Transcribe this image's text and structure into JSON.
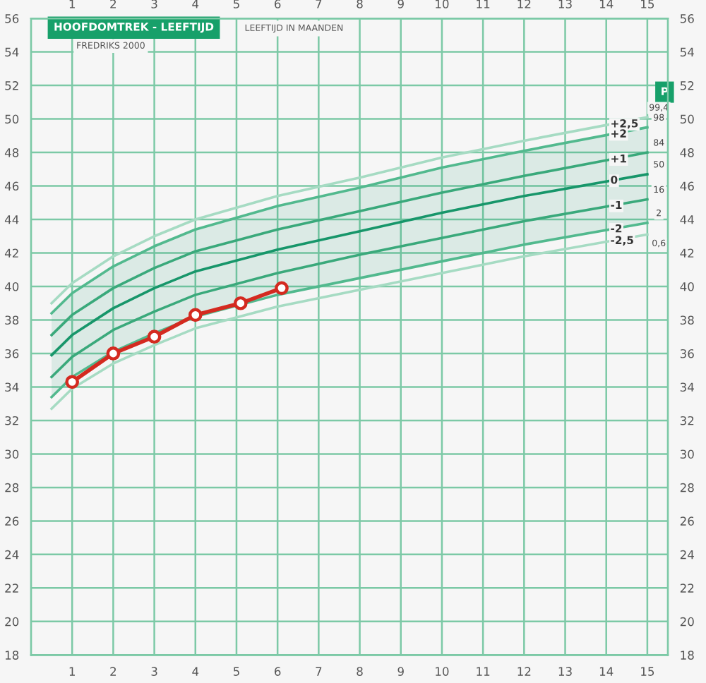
{
  "chart_data": {
    "type": "line",
    "title": "HOOFDOMTREK - LEEFTIJD",
    "subtitle": "FREDRIKS 2000",
    "xlabel": "LEEFTIJD IN MAANDEN",
    "x": [
      0.5,
      1,
      2,
      3,
      4,
      6,
      8,
      10,
      12,
      15
    ],
    "series": [
      {
        "name": "+2,5",
        "color": "#a6dbc3",
        "values": [
          39.0,
          40.2,
          41.8,
          43.0,
          44.0,
          45.4,
          46.5,
          47.7,
          48.7,
          50.1
        ]
      },
      {
        "name": "+2",
        "color": "#52b98e",
        "values": [
          38.4,
          39.6,
          41.2,
          42.4,
          43.4,
          44.8,
          45.9,
          47.1,
          48.1,
          49.5
        ]
      },
      {
        "name": "+1",
        "color": "#3aa97b",
        "values": [
          37.1,
          38.3,
          39.9,
          41.1,
          42.1,
          43.4,
          44.5,
          45.6,
          46.6,
          48.0
        ]
      },
      {
        "name": "0",
        "color": "#17966a",
        "values": [
          35.9,
          37.1,
          38.7,
          39.9,
          40.9,
          42.2,
          43.3,
          44.4,
          45.4,
          46.7
        ],
        "lower": [
          33.4,
          34.6,
          36.1,
          37.2,
          38.2,
          39.5,
          40.5,
          41.5,
          42.5,
          43.8
        ],
        "upper": [
          38.4,
          39.6,
          41.2,
          42.4,
          43.4,
          44.8,
          45.9,
          47.1,
          48.1,
          49.5
        ]
      },
      {
        "name": "-1",
        "color": "#3aa97b",
        "values": [
          34.6,
          35.8,
          37.4,
          38.5,
          39.5,
          40.8,
          41.9,
          42.9,
          43.9,
          45.2
        ]
      },
      {
        "name": "-2",
        "color": "#52b98e",
        "values": [
          33.4,
          34.6,
          36.1,
          37.2,
          38.2,
          39.5,
          40.5,
          41.5,
          42.5,
          43.8
        ]
      },
      {
        "name": "-2,5",
        "color": "#a6dbc3",
        "values": [
          32.7,
          33.9,
          35.4,
          36.5,
          37.5,
          38.8,
          39.8,
          40.8,
          41.8,
          43.1
        ]
      },
      {
        "color": "#d42a20",
        "x": [
          1,
          2,
          3,
          4,
          5.1,
          6.1
        ],
        "values": [
          34.3,
          36.0,
          37.0,
          38.3,
          39.0,
          39.9
        ],
        "marker": "circle"
      }
    ],
    "annotations": [
      "P",
      "99,4",
      "98",
      "84",
      "50",
      "16",
      "2",
      "0,6"
    ],
    "xlim": [
      0,
      15.5
    ],
    "xticks": [
      1,
      2,
      3,
      4,
      5,
      6,
      7,
      8,
      9,
      10,
      11,
      12,
      13,
      14,
      15
    ],
    "x2lim": [
      0,
      15.5
    ],
    "x2ticks": [
      1,
      2,
      3,
      4,
      5,
      6,
      7,
      8,
      9,
      10,
      11,
      12,
      13,
      14,
      15
    ],
    "ylim": [
      18,
      56
    ],
    "yticks": [
      18,
      20,
      22,
      24,
      26,
      28,
      30,
      32,
      34,
      36,
      38,
      40,
      42,
      44,
      46,
      48,
      50,
      52,
      54,
      56
    ],
    "y2lim": [
      18,
      56
    ],
    "y2ticks": [
      18,
      20,
      22,
      24,
      26,
      28,
      30,
      32,
      34,
      36,
      38,
      40,
      42,
      44,
      46,
      48,
      50,
      52,
      54,
      56
    ],
    "grid": true,
    "legend": false,
    "line_style": "solid"
  }
}
